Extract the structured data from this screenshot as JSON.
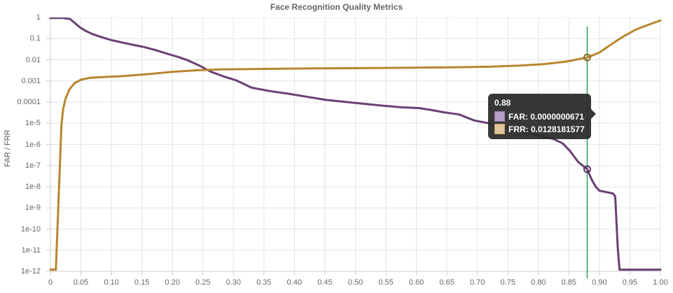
{
  "title": "Face Recognition Quality Metrics",
  "chart_data": {
    "type": "line",
    "title": "Face Recognition Quality Metrics",
    "xlabel": "",
    "ylabel": "FAR / FRR",
    "x_scale": "linear",
    "y_scale": "log",
    "xlim": [
      0,
      1.0
    ],
    "ylim": [
      1e-12,
      1
    ],
    "grid": true,
    "x_ticks": [
      "0",
      "0.05",
      "0.10",
      "0.15",
      "0.20",
      "0.25",
      "0.30",
      "0.35",
      "0.40",
      "0.45",
      "0.50",
      "0.55",
      "0.60",
      "0.65",
      "0.70",
      "0.75",
      "0.80",
      "0.85",
      "0.90",
      "0.95",
      "1.00"
    ],
    "x_tick_values": [
      0,
      0.05,
      0.1,
      0.15,
      0.2,
      0.25,
      0.3,
      0.35,
      0.4,
      0.45,
      0.5,
      0.55,
      0.6,
      0.65,
      0.7,
      0.75,
      0.8,
      0.85,
      0.9,
      0.95,
      1.0
    ],
    "y_ticks": [
      "1",
      "0.1",
      "0.01",
      "0.001",
      "0.0001",
      "1e-5",
      "1e-6",
      "1e-7",
      "1e-8",
      "1e-9",
      "1e-10",
      "1e-11",
      "1e-12"
    ],
    "y_tick_values": [
      1,
      0.1,
      0.01,
      0.001,
      0.0001,
      1e-05,
      1e-06,
      1e-07,
      1e-08,
      1e-09,
      1e-10,
      1e-11,
      1e-12
    ],
    "series": [
      {
        "name": "FAR",
        "color": "#6a4074",
        "points": [
          [
            0.0,
            0.95
          ],
          [
            0.02,
            0.94
          ],
          [
            0.032,
            0.85
          ],
          [
            0.04,
            0.55
          ],
          [
            0.048,
            0.35
          ],
          [
            0.058,
            0.23
          ],
          [
            0.07,
            0.16
          ],
          [
            0.085,
            0.115
          ],
          [
            0.1,
            0.085
          ],
          [
            0.115,
            0.068
          ],
          [
            0.13,
            0.055
          ],
          [
            0.15,
            0.042
          ],
          [
            0.17,
            0.03
          ],
          [
            0.19,
            0.02
          ],
          [
            0.21,
            0.0135
          ],
          [
            0.225,
            0.0095
          ],
          [
            0.245,
            0.0052
          ],
          [
            0.262,
            0.0028
          ],
          [
            0.285,
            0.0016
          ],
          [
            0.305,
            0.00105
          ],
          [
            0.33,
            0.00048
          ],
          [
            0.36,
            0.00033
          ],
          [
            0.39,
            0.00025
          ],
          [
            0.42,
            0.00018
          ],
          [
            0.45,
            0.00013
          ],
          [
            0.48,
            0.000105
          ],
          [
            0.51,
            8.5e-05
          ],
          [
            0.545,
            6.8e-05
          ],
          [
            0.575,
            5.7e-05
          ],
          [
            0.605,
            5.2e-05
          ],
          [
            0.625,
            4.2e-05
          ],
          [
            0.645,
            3.3e-05
          ],
          [
            0.67,
            2.6e-05
          ],
          [
            0.695,
            1.35e-05
          ],
          [
            0.715,
            1.05e-05
          ],
          [
            0.74,
            6.8e-06
          ],
          [
            0.77,
            4.2e-06
          ],
          [
            0.8,
            2.6e-06
          ],
          [
            0.825,
            1.8e-06
          ],
          [
            0.84,
            1.1e-06
          ],
          [
            0.852,
            4.8e-07
          ],
          [
            0.865,
            1.5e-07
          ],
          [
            0.88,
            6.71e-08
          ],
          [
            0.888,
            2e-08
          ],
          [
            0.894,
            1e-08
          ],
          [
            0.9,
            6.5e-09
          ],
          [
            0.912,
            5.5e-09
          ],
          [
            0.922,
            4.8e-09
          ],
          [
            0.926,
            3.5e-09
          ],
          [
            0.93,
            1.5e-11
          ],
          [
            0.933,
            1.2e-12
          ],
          [
            1.0,
            1.2e-12
          ]
        ]
      },
      {
        "name": "FRR",
        "color": "#b8862f",
        "points": [
          [
            0.0,
            1.2e-12
          ],
          [
            0.009,
            1.2e-12
          ],
          [
            0.018,
            8e-06
          ],
          [
            0.021,
            5e-05
          ],
          [
            0.025,
            0.00015
          ],
          [
            0.031,
            0.0004
          ],
          [
            0.04,
            0.0008
          ],
          [
            0.05,
            0.00115
          ],
          [
            0.065,
            0.0014
          ],
          [
            0.09,
            0.00155
          ],
          [
            0.12,
            0.0017
          ],
          [
            0.16,
            0.0021
          ],
          [
            0.2,
            0.0027
          ],
          [
            0.24,
            0.0032
          ],
          [
            0.28,
            0.0035
          ],
          [
            0.34,
            0.0037
          ],
          [
            0.42,
            0.0039
          ],
          [
            0.5,
            0.004
          ],
          [
            0.58,
            0.0042
          ],
          [
            0.66,
            0.0044
          ],
          [
            0.72,
            0.0047
          ],
          [
            0.77,
            0.0053
          ],
          [
            0.81,
            0.0063
          ],
          [
            0.845,
            0.0082
          ],
          [
            0.88,
            0.0128181577
          ],
          [
            0.9,
            0.022
          ],
          [
            0.92,
            0.055
          ],
          [
            0.94,
            0.13
          ],
          [
            0.96,
            0.27
          ],
          [
            0.98,
            0.45
          ],
          [
            1.0,
            0.72
          ]
        ]
      }
    ],
    "annotation_line": {
      "x": 0.88,
      "color": "#1fa65c"
    },
    "markers": [
      {
        "series": "FAR",
        "x": 0.88,
        "y": 6.71e-08,
        "stroke": "#5a3566"
      },
      {
        "series": "FRR",
        "x": 0.88,
        "y": 0.0128181577,
        "stroke": "#8f6a20"
      }
    ],
    "legend_position": "none"
  },
  "tooltip": {
    "title": "0.88",
    "rows": [
      {
        "text": "FAR: 0.0000000671",
        "swatch_style": "background:#b79fc7;border:1px solid #9879ab"
      },
      {
        "text": "FRR: 0.0128181577",
        "swatch_style": "background:#dfc49c;border:1px solid #c4a06a"
      }
    ]
  },
  "colors": {
    "far_line": "#6a4074",
    "frr_line": "#b8862f",
    "threshold_line": "#1fa65c",
    "grid": "#e3e3e3",
    "axis": "#cccccc",
    "tick_text": "#666666",
    "title_text": "#666666"
  }
}
